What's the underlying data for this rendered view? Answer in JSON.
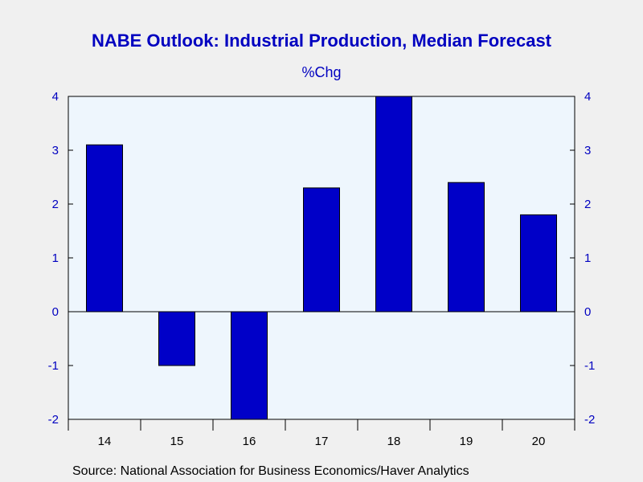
{
  "chart_data": {
    "type": "bar",
    "title": "NABE Outlook: Industrial Production, Median Forecast",
    "subtitle": "%Chg",
    "categories": [
      "14",
      "15",
      "16",
      "17",
      "18",
      "19",
      "20"
    ],
    "values": [
      3.1,
      -1.0,
      -2.0,
      2.3,
      4.0,
      2.4,
      1.8
    ],
    "ylim": [
      -2,
      4
    ],
    "yticks": [
      "-2",
      "-1",
      "0",
      "1",
      "2",
      "3",
      "4"
    ],
    "right_axis": true,
    "grid": false,
    "source": "Source:  National Association for Business Economics/Haver Analytics",
    "colors": {
      "bar": "#0000c8",
      "plot_bg": "#eef6fd",
      "axis_text": "#0000c0"
    }
  }
}
